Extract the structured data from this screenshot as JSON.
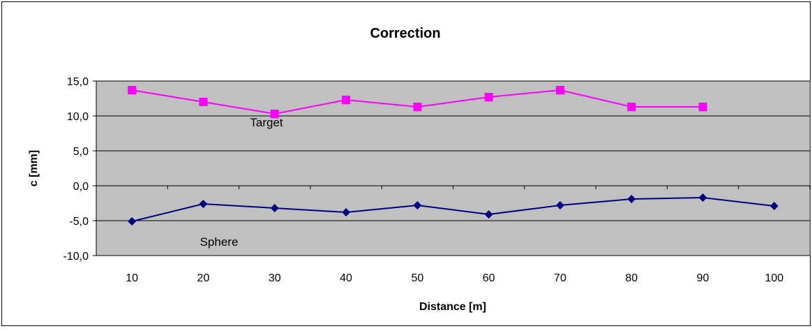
{
  "chart_data": {
    "type": "line",
    "title": "Correction",
    "xlabel": "Distance [m]",
    "ylabel": "c [mm]",
    "categories": [
      "10",
      "20",
      "30",
      "40",
      "50",
      "60",
      "70",
      "80",
      "90",
      "100"
    ],
    "ylim": [
      -10,
      15
    ],
    "ytick_values": [
      15,
      10,
      5,
      0,
      -5,
      -10
    ],
    "ytick_labels": [
      "15,0",
      "10,0",
      "5,0",
      "0,0",
      "-5,0",
      "-10,0"
    ],
    "grid": true,
    "legend": "none",
    "series": [
      {
        "name": "Target",
        "color": "#ff00ff",
        "marker": "square",
        "values": [
          13.7,
          12.0,
          10.3,
          12.3,
          11.3,
          12.7,
          13.7,
          11.3,
          11.3,
          null
        ]
      },
      {
        "name": "Sphere",
        "color": "#000080",
        "marker": "diamond",
        "values": [
          -5.1,
          -2.6,
          -3.2,
          -3.8,
          -2.8,
          -4.1,
          -2.8,
          -1.9,
          -1.7,
          -2.9
        ]
      }
    ]
  },
  "colors": {
    "plot_background": "#c0c0c0",
    "gridline": "#000000",
    "frame": "#000000"
  }
}
